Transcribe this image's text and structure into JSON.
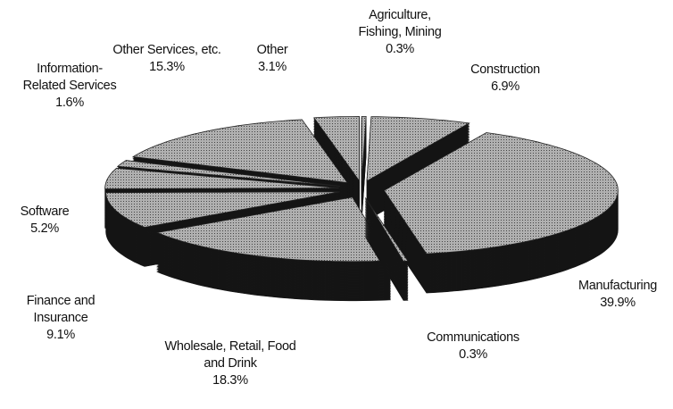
{
  "chart_data": {
    "type": "pie",
    "categories": [
      "Agriculture,\nFishing, Mining",
      "Construction",
      "Manufacturing",
      "Communications",
      "Wholesale, Retail, Food\nand Drink",
      "Finance and\nInsurance",
      "Software",
      "Information-\nRelated Services",
      "Other Services, etc.",
      "Other"
    ],
    "values": [
      0.3,
      6.9,
      39.9,
      0.3,
      18.3,
      9.1,
      5.2,
      1.6,
      15.3,
      3.1
    ],
    "value_labels": [
      "0.3%",
      "6.9%",
      "39.9%",
      "0.3%",
      "18.3%",
      "9.1%",
      "5.2%",
      "1.6%",
      "15.3%",
      "3.1%"
    ],
    "color": "#9a9a9a"
  }
}
